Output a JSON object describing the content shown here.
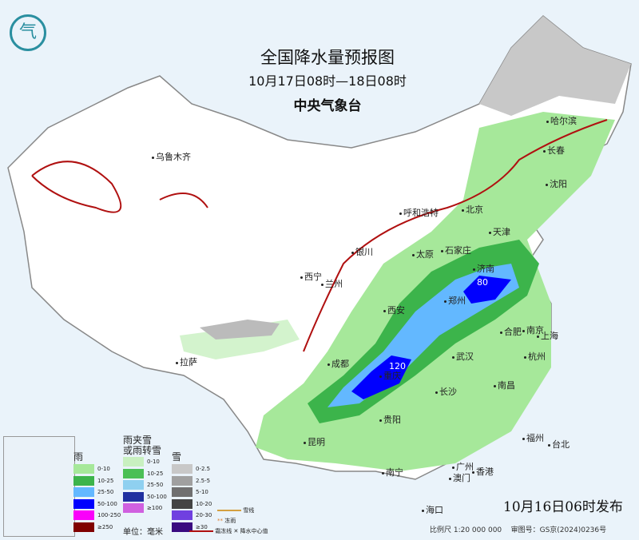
{
  "title": "全国降水量预报图",
  "period": "10月17日08时—18日08时",
  "agency": "中央气象台",
  "issued": "10月16日06时发布",
  "scale": "比例尺 1:20 000 000",
  "review_no": "审图号：GS京(2024)0236号",
  "logo": "气",
  "cities": [
    {
      "name": "哈尔滨"
    },
    {
      "name": "长春"
    },
    {
      "name": "沈阳"
    },
    {
      "name": "乌鲁木齐"
    },
    {
      "name": "呼和浩特"
    },
    {
      "name": "北京"
    },
    {
      "name": "天津"
    },
    {
      "name": "石家庄"
    },
    {
      "name": "太原"
    },
    {
      "name": "银川"
    },
    {
      "name": "济南"
    },
    {
      "name": "西宁"
    },
    {
      "name": "兰州"
    },
    {
      "name": "郑州"
    },
    {
      "name": "西安"
    },
    {
      "name": "合肥"
    },
    {
      "name": "南京"
    },
    {
      "name": "上海"
    },
    {
      "name": "武汉"
    },
    {
      "name": "杭州"
    },
    {
      "name": "成都"
    },
    {
      "name": "拉萨"
    },
    {
      "name": "重庆"
    },
    {
      "name": "长沙"
    },
    {
      "name": "南昌"
    },
    {
      "name": "贵阳"
    },
    {
      "name": "福州"
    },
    {
      "name": "台北"
    },
    {
      "name": "昆明"
    },
    {
      "name": "南宁"
    },
    {
      "name": "广州"
    },
    {
      "name": "香港"
    },
    {
      "name": "澳门"
    },
    {
      "name": "海口"
    }
  ],
  "centers": [
    {
      "value": "80"
    },
    {
      "value": "120"
    }
  ],
  "legend": {
    "rain": {
      "title": "雨",
      "items": [
        {
          "label": "0-10",
          "color": "#a6e89a"
        },
        {
          "label": "10-25",
          "color": "#3cb44b"
        },
        {
          "label": "25-50",
          "color": "#63b8ff"
        },
        {
          "label": "50-100",
          "color": "#0000fe"
        },
        {
          "label": "100-250",
          "color": "#fa00fa"
        },
        {
          "label": "≥250",
          "color": "#800000"
        }
      ]
    },
    "sleet": {
      "title": "雨夹雪\n或雨转雪",
      "items": [
        {
          "label": "0-10",
          "color": "#c8f0c0"
        },
        {
          "label": "10-25",
          "color": "#4bbf55"
        },
        {
          "label": "25-50",
          "color": "#8fd0f0"
        },
        {
          "label": "50-100",
          "color": "#2030a0"
        },
        {
          "label": "≥100",
          "color": "#d060e0"
        }
      ]
    },
    "snow": {
      "title": "雪",
      "items": [
        {
          "label": "0-2.5",
          "color": "#c8c8c8"
        },
        {
          "label": "2.5-5",
          "color": "#a0a0a0"
        },
        {
          "label": "5-10",
          "color": "#707070"
        },
        {
          "label": "10-20",
          "color": "#444444"
        },
        {
          "label": "20-30",
          "color": "#7040e0"
        },
        {
          "label": "≥30",
          "color": "#3a0a80"
        }
      ]
    },
    "unit": "单位：毫米",
    "lines": [
      {
        "label": "雪线"
      },
      {
        "label": "冻雨"
      },
      {
        "label": "霜冻线"
      },
      {
        "label": "降水中心值"
      }
    ]
  }
}
